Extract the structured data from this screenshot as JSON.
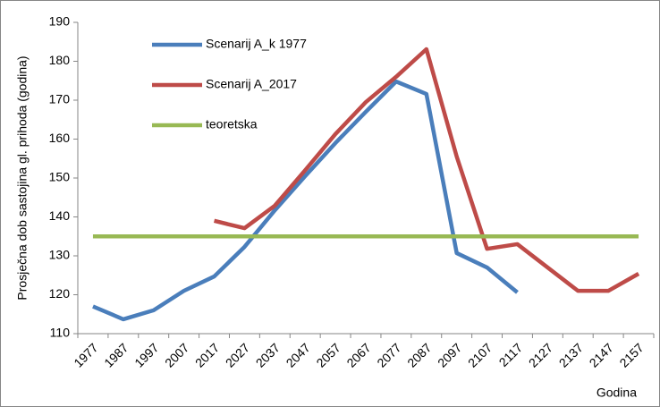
{
  "chart_data": {
    "type": "line",
    "y_label": "Prosječna dob sastojina gl. prihoda (godina)",
    "x_label": "Godina",
    "categories": [
      "1977",
      "1987",
      "1997",
      "2007",
      "2017",
      "2027",
      "2037",
      "2047",
      "2057",
      "2067",
      "2077",
      "2087",
      "2097",
      "2107",
      "2117",
      "2127",
      "2137",
      "2147",
      "2157"
    ],
    "series": [
      {
        "name": "Scenarij A_k 1977",
        "color": "#4a7ebb",
        "values": [
          117,
          113.7,
          116,
          121,
          124.7,
          132.3,
          141.7,
          150.5,
          159,
          167,
          174.8,
          171.6,
          130.7,
          127,
          120.6,
          null,
          null,
          null,
          null
        ]
      },
      {
        "name": "Scenarij A_2017",
        "color": "#be4b48",
        "values": [
          null,
          null,
          null,
          null,
          139,
          137.1,
          142.9,
          152,
          161.3,
          169.5,
          176,
          183.1,
          155.5,
          131.8,
          133,
          127,
          121,
          121,
          125.4
        ]
      },
      {
        "name": "teoretska",
        "color": "#98b954",
        "values": [
          135,
          135,
          135,
          135,
          135,
          135,
          135,
          135,
          135,
          135,
          135,
          135,
          135,
          135,
          135,
          135,
          135,
          135,
          135
        ]
      }
    ],
    "ylim": [
      110,
      190
    ],
    "yticks": [
      110,
      120,
      130,
      140,
      150,
      160,
      170,
      180,
      190
    ],
    "legend": "upper-left",
    "grid": false
  }
}
